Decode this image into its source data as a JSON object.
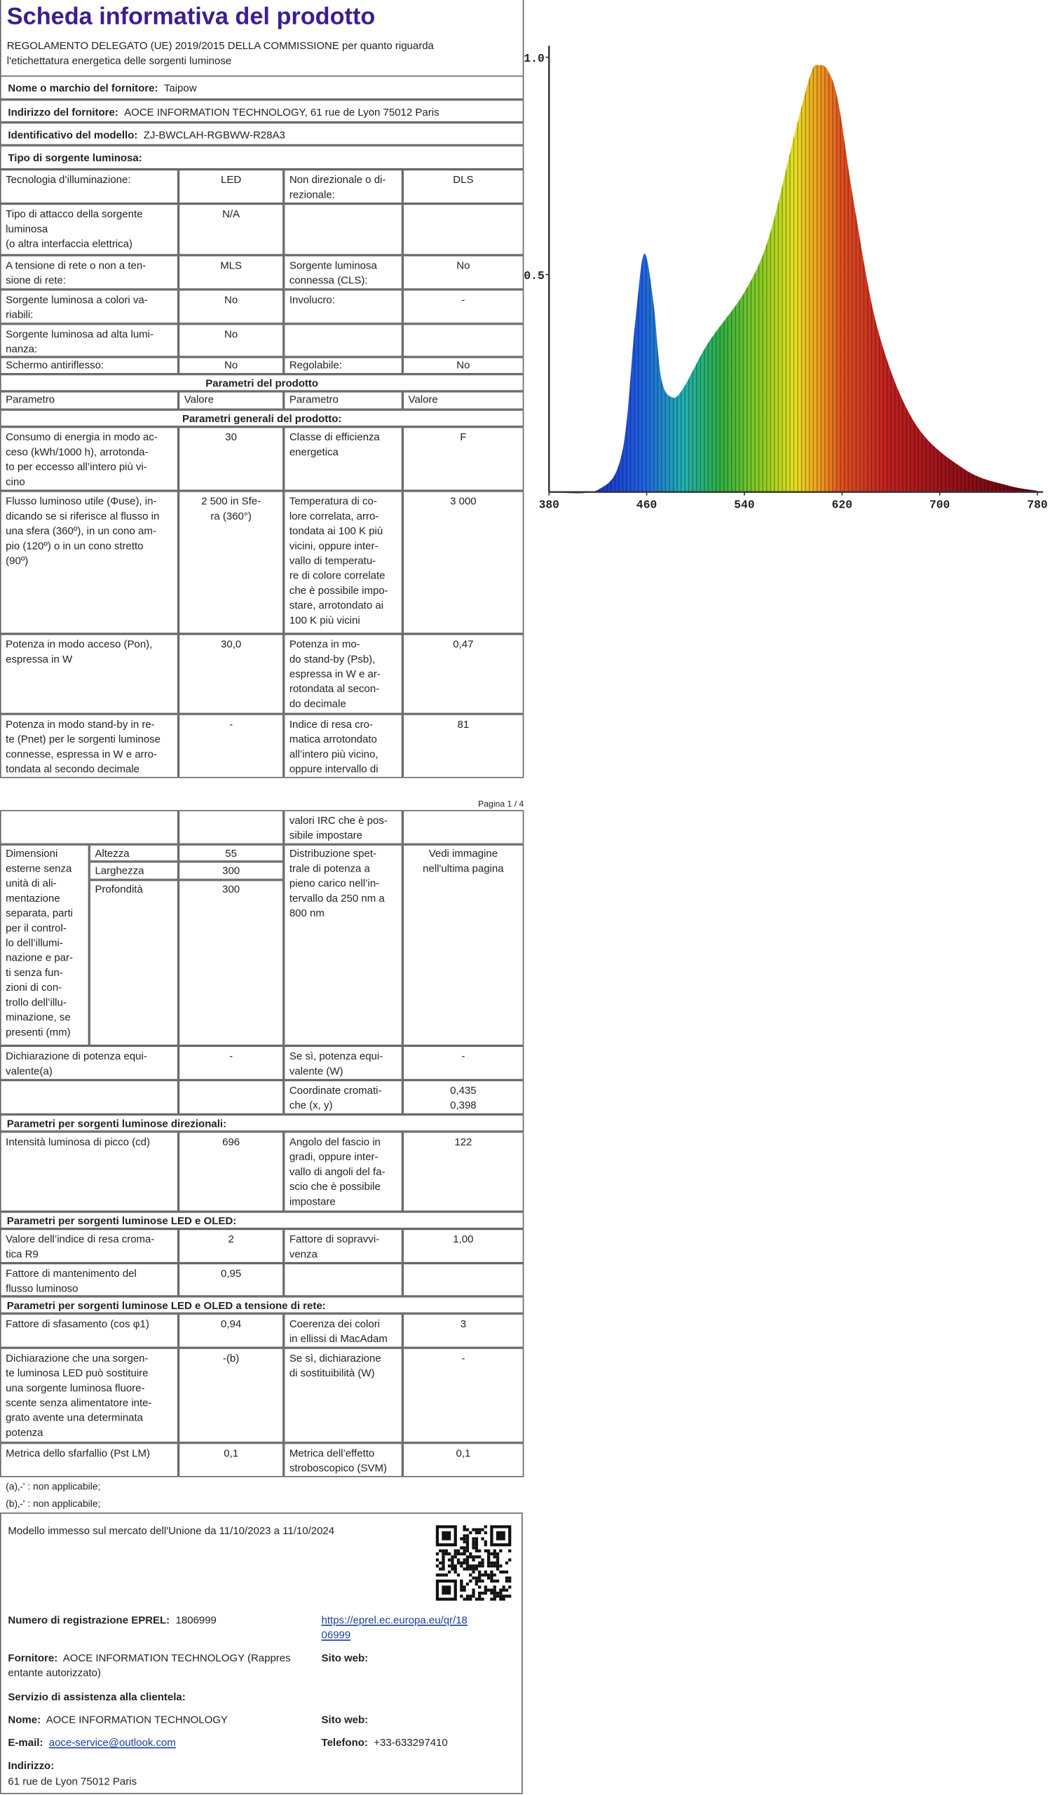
{
  "header": {
    "title": "Scheda informativa del prodotto",
    "subtitle": [
      "REGOLAMENTO DELEGATO (UE) 2019/2015 DELLA COMMISSIONE per quanto riguarda",
      "l'etichettatura energetica delle sorgenti luminose"
    ]
  },
  "supplier_rows": [
    {
      "label": "Nome o marchio del fornitore:",
      "value": "Taipow"
    },
    {
      "label": "Indirizzo del fornitore:",
      "value": "AOCE INFORMATION TECHNOLOGY, 61 rue de Lyon 75012 Paris"
    },
    {
      "label": "Identificativo del modello:",
      "value": "ZJ-BWCLAH-RGBWW-R28A3"
    },
    {
      "label": "Tipo di sorgente luminosa:"
    }
  ],
  "table": {
    "rows": [
      [
        [
          "Tecnologia d’illuminazione:"
        ],
        [
          "LED"
        ],
        [
          "Non direzionale o di-",
          "rezionale:"
        ],
        [
          "DLS"
        ]
      ],
      [
        [
          "Tipo di attacco della sorgente",
          "luminosa",
          "(o altra interfaccia elettrica)"
        ],
        [
          "N/A"
        ],
        null,
        null
      ],
      [
        [
          "A tensione di rete o non a ten-",
          "sione di rete:"
        ],
        [
          "MLS"
        ],
        [
          "Sorgente luminosa",
          "connessa (CLS):"
        ],
        [
          "No"
        ]
      ],
      [
        [
          "Sorgente luminosa a colori va-",
          "riabili:"
        ],
        [
          "No"
        ],
        [
          "Involucro:"
        ],
        [
          "-"
        ]
      ],
      [
        [
          "Sorgente luminosa ad alta lumi-",
          "nanza:"
        ],
        [
          "No"
        ],
        null,
        null
      ],
      [
        [
          "Schermo antiriflesso:"
        ],
        [
          "No"
        ],
        [
          "Regolabile:"
        ],
        [
          "No"
        ]
      ],
      {
        "heading": "Parametri del prodotto"
      },
      [
        [
          "Parametro"
        ],
        [
          "Valore"
        ],
        [
          "Parametro"
        ],
        [
          "Valore"
        ]
      ],
      {
        "heading": "Parametri generali del prodotto:"
      },
      [
        [
          "Consumo di energia in modo ac-",
          "ceso (kWh/1000 h), arrotonda-",
          "to per eccesso all’intero più vi-",
          "cino"
        ],
        [
          "30"
        ],
        [
          "Classe di efficienza",
          "energetica"
        ],
        [
          "F"
        ]
      ],
      [
        [
          "Flusso luminoso utile (Φuse), in-",
          "dicando se si riferisce al flusso in",
          "una sfera (360º), in un cono am-",
          "pio (120º) o in un cono stretto",
          "(90º)"
        ],
        [
          "2 500 in Sfe-",
          "ra (360°)"
        ],
        [
          "Temperatura di co-",
          "lore correlata, arro-",
          "tondata ai 100 K più",
          "vicini, oppure inter-",
          "vallo di temperatu-",
          "re di colore correlate",
          "che è possibile impo-",
          "stare, arrotondato ai",
          "100 K più vicini"
        ],
        [
          "3 000"
        ]
      ],
      [
        [
          "Potenza in modo acceso (Pon),",
          "espressa in W"
        ],
        [
          "30,0"
        ],
        [
          "Potenza in mo-",
          "do stand-by (Psb),",
          "espressa in W e ar-",
          "rotondata al secon-",
          "do decimale"
        ],
        [
          "0,47"
        ]
      ],
      [
        [
          "Potenza in modo stand-by in re-",
          "te (Pnet) per le sorgenti luminose",
          "connesse, espressa in W e arro-",
          "tondata al secondo decimale"
        ],
        [
          "-"
        ],
        [
          "Indice di resa cro-",
          "matica arrotondato",
          "all’intero più vicino,",
          "oppure intervallo di"
        ],
        [
          "81"
        ]
      ],
      [
        null,
        null,
        [
          "valori IRC che è pos-",
          "sibile impostare"
        ],
        null
      ],
      [
        [
          "Dimensioni",
          "esterne senza",
          "unità di ali-",
          "mentazione",
          "separata, parti",
          "per il control-",
          "lo dell’illumi-",
          "nazione e par-",
          "ti senza fun-",
          "zioni di con-",
          "trollo dell’illu-",
          "minazione, se",
          "presenti (mm)"
        ],
        [
          "Altezza"
        ],
        [
          "55"
        ],
        [
          "Larghezza"
        ],
        [
          "300"
        ],
        [
          "Profondità"
        ],
        [
          "300"
        ],
        [
          "Distribuzione spet-",
          "trale di potenza a",
          "pieno carico nell’in-",
          "tervallo da 250 nm a",
          "800 nm"
        ],
        [
          "Vedi immagine",
          "nell'ultima pagina"
        ]
      ],
      [
        [
          "Dichiarazione di potenza equi-",
          "valente(a)"
        ],
        [
          "-"
        ],
        [
          "Se sì, potenza equi-",
          "valente (W)"
        ],
        [
          "-"
        ]
      ],
      [
        null,
        null,
        [
          "Coordinate cromati-",
          "che (x, y)"
        ],
        [
          "0,435",
          "0,398"
        ]
      ],
      {
        "heading": "Parametri per sorgenti luminose direzionali:"
      },
      [
        [
          "Intensità luminosa di picco (cd)"
        ],
        [
          "696"
        ],
        [
          "Angolo del fascio in",
          "gradi, oppure inter-",
          "vallo di angoli del fa-",
          "scio che è possibile",
          "impostare"
        ],
        [
          "122"
        ]
      ],
      {
        "heading": "Parametri per sorgenti luminose LED e OLED:"
      },
      [
        [
          "Valore dell’indice di resa croma-",
          "tica R9"
        ],
        [
          "2"
        ],
        [
          "Fattore di sopravvi-",
          "venza"
        ],
        [
          "1,00"
        ]
      ],
      [
        [
          "Fattore di mantenimento del",
          "flusso luminoso"
        ],
        [
          "0,95"
        ],
        null,
        null
      ],
      {
        "heading": "Parametri per sorgenti luminose LED e OLED a tensione di rete:"
      },
      [
        [
          "Fattore di sfasamento (cos φ1)"
        ],
        [
          "0,94"
        ],
        [
          "Coerenza dei colori",
          "in ellissi di MacAdam"
        ],
        [
          "3"
        ]
      ],
      [
        [
          "Dichiarazione che una sorgen-",
          "te luminosa LED può sostituire",
          "una sorgente luminosa fluore-",
          "scente senza alimentatore inte-",
          "grato avente una determinata",
          "potenza"
        ],
        [
          "-(b)"
        ],
        [
          "Se sì, dichiarazione",
          "di sostituibilità (W)"
        ],
        [
          "-"
        ]
      ],
      [
        [
          "Metrica dello sfarfallio (Pst LM)"
        ],
        [
          "0,1"
        ],
        [
          "Metrica dell’effetto",
          "stroboscopico (SVM)"
        ],
        [
          "0,1"
        ]
      ]
    ]
  },
  "page_footer": "Pagina 1 / 4",
  "footnotes": [
    "(a)‚-' : non applicabile;",
    "(b)‚-' : non applicabile;"
  ],
  "spectrum": {
    "xticks": [
      380,
      460,
      540,
      620,
      700,
      780
    ],
    "yticks": [
      {
        "value": 1,
        "label": "1.0"
      },
      {
        "value": 0.5,
        "label": "0.5"
      }
    ]
  },
  "registration": {
    "market": "Modello immesso sul mercato dell'Unione da 11/10/2023 a 11/10/2024",
    "eprel_label": "Numero di registrazione EPREL:",
    "eprel": "1806999",
    "link": [
      "https://eprel.ec.europa.eu/qr/18",
      "06999"
    ],
    "supplier_label": "Fornitore:",
    "supplier": [
      "AOCE INFORMATION TECHNOLOGY (Rappres",
      "entante autorizzato)"
    ],
    "website_label": "Sito web:",
    "service_title": "Servizio di assistenza alla clientela:",
    "name_label": "Nome:",
    "name": "AOCE INFORMATION TECHNOLOGY",
    "service_website_label": "Sito web:",
    "email_label": "E-mail:",
    "email": "aoce-service@outlook.com",
    "phone_label": "Telefono:",
    "phone": "+33-633297410",
    "address_label": "Indirizzo:",
    "address": "61 rue de Lyon 75012 Paris"
  }
}
